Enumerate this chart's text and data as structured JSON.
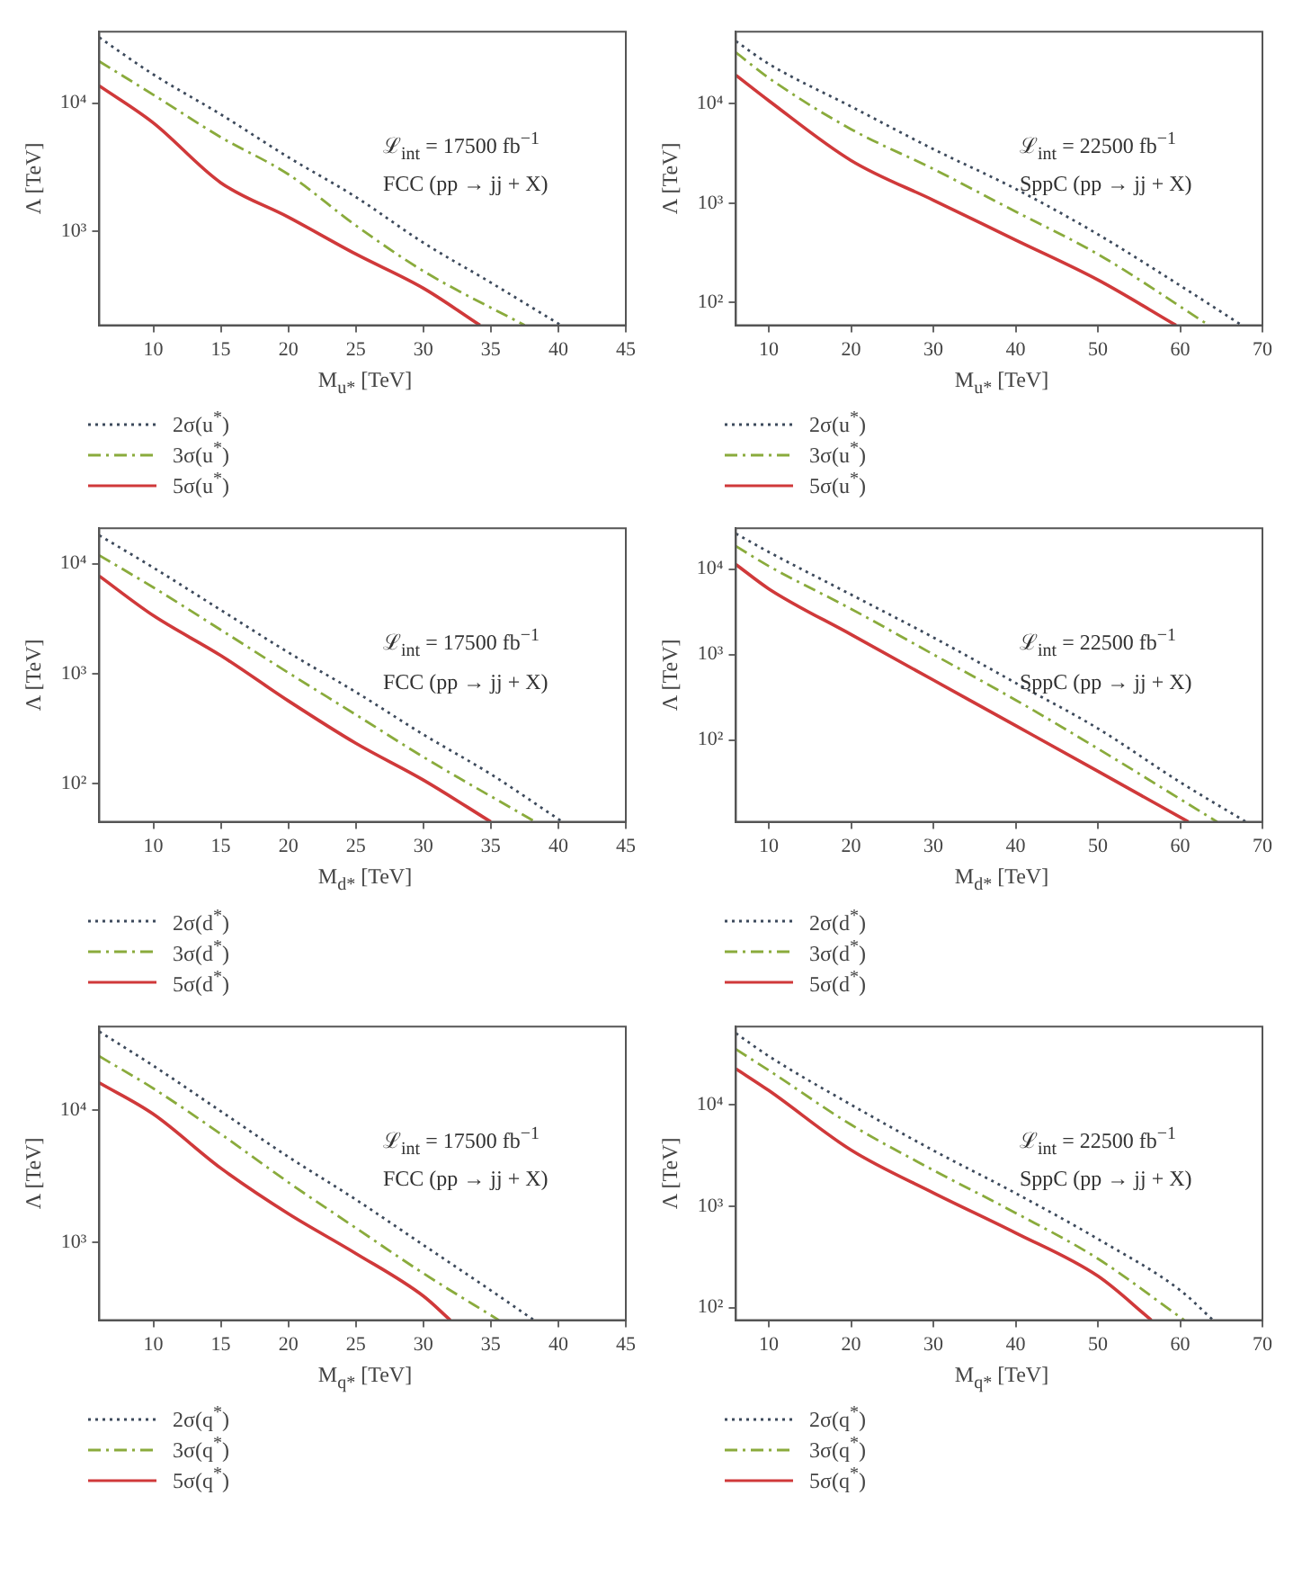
{
  "chart_data": [
    {
      "type": "line",
      "xlabel": "M$_{u*}$  [TeV]",
      "ylabel": "Λ [TeV]",
      "annotations": [
        "ℒ$_{int}$ = 17500 fb$^{−1}$",
        "FCC (pp → jj + X)"
      ],
      "xlim": [
        6,
        45
      ],
      "xticks": [
        10,
        15,
        20,
        25,
        30,
        35,
        40,
        45
      ],
      "ylim": [
        185,
        36000
      ],
      "yticks": [
        {
          "value": 1000,
          "label": "10³"
        },
        {
          "value": 10000,
          "label": "10⁴"
        }
      ],
      "log": "y",
      "legend": "bottom",
      "series": [
        {
          "name": "2σ(u$^{*}$)",
          "color": "#3d4a5c",
          "line_style": "dotted",
          "x": [
            6,
            10,
            15,
            20,
            25,
            30,
            35,
            40.2
          ],
          "values": [
            32400,
            16700,
            8150,
            3780,
            1850,
            815,
            398,
            185
          ]
        },
        {
          "name": "3σ(u$^{*}$)",
          "color": "#8aab3c",
          "line_style": "dashed",
          "x": [
            6,
            10,
            15,
            20,
            25,
            30,
            37.5
          ],
          "values": [
            21100,
            11600,
            5410,
            2780,
            1110,
            490,
            185
          ]
        },
        {
          "name": "5σ(u$^{*}$)",
          "color": "#d0393a",
          "line_style": "solid",
          "x": [
            6,
            10,
            15,
            20,
            25,
            30,
            34.2
          ],
          "values": [
            13600,
            7000,
            2390,
            1290,
            664,
            360,
            185
          ]
        }
      ]
    },
    {
      "type": "line",
      "xlabel": "M$_{u*}$  [TeV]",
      "ylabel": "Λ [TeV]",
      "annotations": [
        "ℒ$_{int}$ = 22500 fb$^{−1}$",
        "SppC (pp → jj + X)"
      ],
      "xlim": [
        6,
        70
      ],
      "xticks": [
        10,
        20,
        30,
        40,
        50,
        60,
        70
      ],
      "ylim": [
        59,
        53000
      ],
      "yticks": [
        {
          "value": 100,
          "label": "10²"
        },
        {
          "value": 1000,
          "label": "10³"
        },
        {
          "value": 10000,
          "label": "10⁴"
        }
      ],
      "log": "y",
      "legend": "bottom",
      "series": [
        {
          "name": "2σ(u$^{*}$)",
          "color": "#3d4a5c",
          "line_style": "dotted",
          "x": [
            6,
            10,
            20,
            30,
            40,
            50,
            60,
            67.5
          ],
          "values": [
            42500,
            25100,
            9360,
            3490,
            1390,
            485,
            148,
            59
          ]
        },
        {
          "name": "3σ(u$^{*}$)",
          "color": "#8aab3c",
          "line_style": "dashed",
          "x": [
            6,
            10,
            20,
            30,
            40,
            50,
            63.5
          ],
          "values": [
            32700,
            18100,
            5530,
            2200,
            820,
            306,
            59
          ]
        },
        {
          "name": "5σ(u$^{*}$)",
          "color": "#d0393a",
          "line_style": "solid",
          "x": [
            6,
            10,
            20,
            30,
            40,
            50,
            59.5
          ],
          "values": [
            19300,
            10700,
            2680,
            1070,
            425,
            169,
            59
          ]
        }
      ]
    },
    {
      "type": "line",
      "xlabel": "M$_{d*}$  [TeV]",
      "ylabel": "Λ [TeV]",
      "annotations": [
        "ℒ$_{int}$ = 17500 fb$^{−1}$",
        "FCC (pp → jj + X)"
      ],
      "xlim": [
        6,
        45
      ],
      "xticks": [
        10,
        15,
        20,
        25,
        30,
        35,
        40,
        45
      ],
      "ylim": [
        45,
        21000
      ],
      "yticks": [
        {
          "value": 100,
          "label": "10²"
        },
        {
          "value": 1000,
          "label": "10³"
        },
        {
          "value": 10000,
          "label": "10⁴"
        }
      ],
      "log": "y",
      "legend": "bottom",
      "series": [
        {
          "name": "2σ(d$^{*}$)",
          "color": "#3d4a5c",
          "line_style": "dotted",
          "x": [
            6,
            10,
            15,
            20,
            25,
            30,
            35,
            40.3
          ],
          "values": [
            18100,
            9200,
            3790,
            1560,
            681,
            280,
            122,
            45
          ]
        },
        {
          "name": "3σ(d$^{*}$)",
          "color": "#8aab3c",
          "line_style": "dashed",
          "x": [
            6,
            10,
            15,
            20,
            25,
            30,
            38.3
          ],
          "values": [
            11900,
            6080,
            2500,
            1020,
            424,
            175,
            45
          ]
        },
        {
          "name": "5σ(d$^{*}$)",
          "color": "#d0393a",
          "line_style": "solid",
          "x": [
            6,
            10,
            15,
            20,
            25,
            30,
            35
          ],
          "values": [
            7700,
            3370,
            1460,
            566,
            233,
            108,
            45
          ]
        }
      ]
    },
    {
      "type": "line",
      "xlabel": "M$_{d*}$  [TeV]",
      "ylabel": "Λ [TeV]",
      "annotations": [
        "ℒ$_{int}$ = 22500 fb$^{−1}$",
        "SppC (pp → jj + X)"
      ],
      "xlim": [
        6,
        70
      ],
      "xticks": [
        10,
        20,
        30,
        40,
        50,
        60,
        70
      ],
      "ylim": [
        11,
        30000
      ],
      "yticks": [
        {
          "value": 100,
          "label": "10²"
        },
        {
          "value": 1000,
          "label": "10³"
        },
        {
          "value": 10000,
          "label": "10⁴"
        }
      ],
      "log": "y",
      "legend": "bottom",
      "series": [
        {
          "name": "2σ(d$^{*}$)",
          "color": "#3d4a5c",
          "line_style": "dotted",
          "x": [
            6,
            10,
            20,
            30,
            40,
            50,
            60,
            68
          ],
          "values": [
            25900,
            15800,
            5010,
            1580,
            464,
            136,
            32,
            11
          ]
        },
        {
          "name": "3σ(d$^{*}$)",
          "color": "#8aab3c",
          "line_style": "dashed",
          "x": [
            6,
            10,
            20,
            30,
            40,
            50,
            64.5
          ],
          "values": [
            18500,
            10800,
            3410,
            1000,
            293,
            79,
            11
          ]
        },
        {
          "name": "5σ(d$^{*}$)",
          "color": "#d0393a",
          "line_style": "solid",
          "x": [
            6,
            10,
            20,
            30,
            40,
            50,
            61
          ],
          "values": [
            11300,
            5850,
            1710,
            501,
            147,
            43,
            11
          ]
        }
      ]
    },
    {
      "type": "line",
      "xlabel": "M$_{q*}$  [TeV]",
      "ylabel": "Λ [TeV]",
      "annotations": [
        "ℒ$_{int}$ = 17500 fb$^{−1}$",
        "FCC (pp → jj + X)"
      ],
      "xlim": [
        6,
        45
      ],
      "xticks": [
        10,
        15,
        20,
        25,
        30,
        35,
        40,
        45
      ],
      "ylim": [
        256,
        43000
      ],
      "yticks": [
        {
          "value": 1000,
          "label": "10³"
        },
        {
          "value": 10000,
          "label": "10⁴"
        }
      ],
      "log": "y",
      "legend": "bottom",
      "series": [
        {
          "name": "2σ(q$^{*}$)",
          "color": "#3d4a5c",
          "line_style": "dotted",
          "x": [
            6,
            10,
            15,
            20,
            25,
            30,
            35,
            38.2
          ],
          "values": [
            39400,
            21700,
            9800,
            4430,
            2100,
            951,
            430,
            256
          ]
        },
        {
          "name": "3σ(q$^{*}$)",
          "color": "#8aab3c",
          "line_style": "dashed",
          "x": [
            6,
            10,
            15,
            20,
            25,
            30,
            35.6
          ],
          "values": [
            25600,
            14600,
            6590,
            2840,
            1280,
            580,
            256
          ]
        },
        {
          "name": "5σ(q$^{*}$)",
          "color": "#d0393a",
          "line_style": "solid",
          "x": [
            6,
            10,
            15,
            20,
            25,
            30,
            32
          ],
          "values": [
            16100,
            9330,
            3630,
            1640,
            820,
            390,
            256
          ]
        }
      ]
    },
    {
      "type": "line",
      "xlabel": "M$_{q*}$  [TeV]",
      "ylabel": "Λ [TeV]",
      "annotations": [
        "ℒ$_{int}$ = 22500 fb$^{−1}$",
        "SppC (pp → jj + X)"
      ],
      "xlim": [
        6,
        70
      ],
      "xticks": [
        10,
        20,
        30,
        40,
        50,
        60,
        70
      ],
      "ylim": [
        75,
        59000
      ],
      "yticks": [
        {
          "value": 100,
          "label": "10²"
        },
        {
          "value": 1000,
          "label": "10³"
        },
        {
          "value": 10000,
          "label": "10⁴"
        }
      ],
      "log": "y",
      "legend": "bottom",
      "series": [
        {
          "name": "2σ(q$^{*}$)",
          "color": "#3d4a5c",
          "line_style": "dotted",
          "x": [
            6,
            10,
            20,
            30,
            40,
            50,
            60,
            64
          ],
          "values": [
            50600,
            30100,
            10000,
            3540,
            1340,
            474,
            148,
            75
          ]
        },
        {
          "name": "3σ(q$^{*}$)",
          "color": "#8aab3c",
          "line_style": "dashed",
          "x": [
            6,
            10,
            20,
            30,
            40,
            50,
            60.5
          ],
          "values": [
            35200,
            21800,
            6350,
            2260,
            856,
            303,
            75
          ]
        },
        {
          "name": "5σ(q$^{*}$)",
          "color": "#d0393a",
          "line_style": "solid",
          "x": [
            6,
            10,
            20,
            30,
            40,
            50,
            56.5
          ],
          "values": [
            22600,
            13800,
            3570,
            1350,
            544,
            204,
            75
          ]
        }
      ]
    }
  ]
}
